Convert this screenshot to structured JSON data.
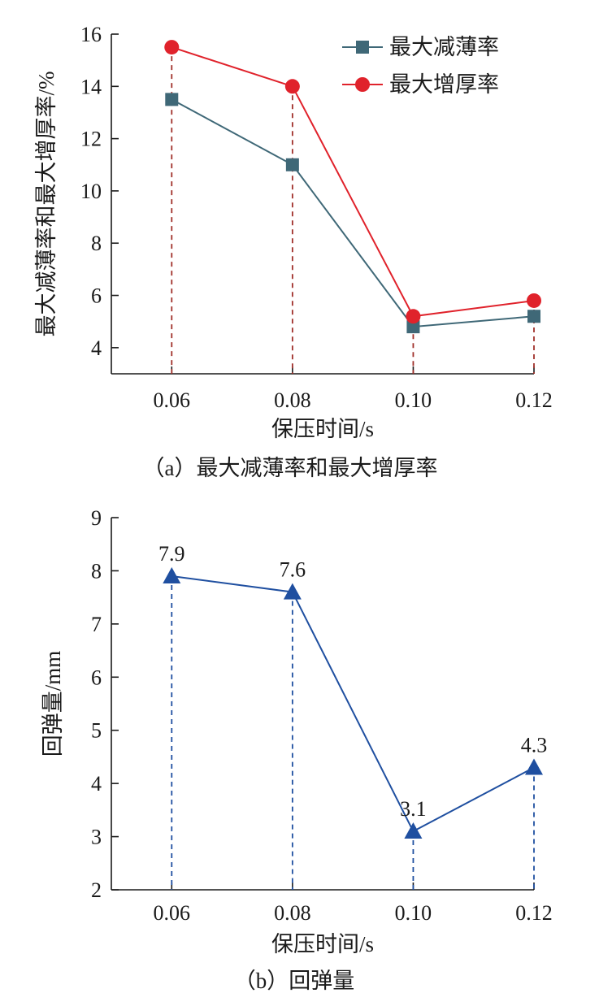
{
  "chart_data": [
    {
      "type": "line",
      "title": "（a）最大减薄率和最大增厚率",
      "xlabel": "保压时间/s",
      "ylabel": "最大减薄率和最大增厚率/%",
      "categories": [
        "0.06",
        "0.08",
        "0.10",
        "0.12"
      ],
      "x": [
        0.06,
        0.08,
        0.1,
        0.12
      ],
      "xlim": [
        0.05,
        0.12
      ],
      "ylim": [
        3,
        16
      ],
      "yticks": [
        4,
        6,
        8,
        10,
        12,
        14,
        16
      ],
      "grid": false,
      "legend_position": "top-right",
      "series": [
        {
          "name": "最大减薄率",
          "values": [
            13.5,
            11.0,
            4.8,
            5.2
          ],
          "color": "#3f6877",
          "marker": "square"
        },
        {
          "name": "最大增厚率",
          "values": [
            15.5,
            14.0,
            5.2,
            5.8
          ],
          "color": "#e0222b",
          "marker": "circle"
        }
      ],
      "drop_line_color": "#a0302a"
    },
    {
      "type": "line",
      "title": "（b）回弹量",
      "xlabel": "保压时间/s",
      "ylabel": "回弹量/mm",
      "categories": [
        "0.06",
        "0.08",
        "0.10",
        "0.12"
      ],
      "x": [
        0.06,
        0.08,
        0.1,
        0.12
      ],
      "xlim": [
        0.05,
        0.12
      ],
      "ylim": [
        2,
        9
      ],
      "yticks": [
        2,
        3,
        4,
        5,
        6,
        7,
        8,
        9
      ],
      "grid": false,
      "series": [
        {
          "values": [
            7.9,
            7.6,
            3.1,
            4.3
          ],
          "color": "#1f4fa0",
          "marker": "triangle"
        }
      ],
      "data_labels": [
        "7.9",
        "7.6",
        "3.1",
        "4.3"
      ],
      "drop_line_color": "#1f4fa0"
    }
  ]
}
